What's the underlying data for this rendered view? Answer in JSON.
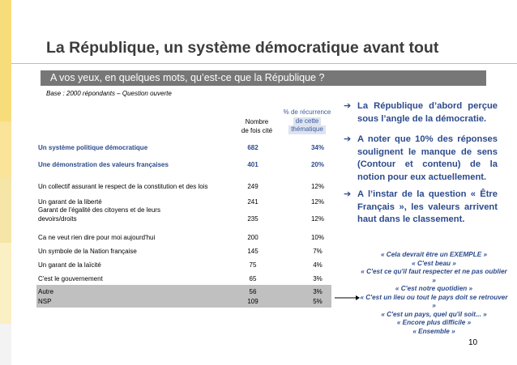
{
  "slide": {
    "title": "La République, un système démocratique avant tout",
    "question": "A vos yeux, en quelques mots, qu’est-ce que la République ?",
    "base": "Base : 2000 répondants – Question ouverte",
    "page_number": "10"
  },
  "table": {
    "col_count": [
      "Nombre",
      "de fois cité"
    ],
    "col_pct": [
      "% de récurrence",
      "de cette",
      "thématique"
    ],
    "rows": [
      {
        "label": "Un système politique démocratique",
        "count": "682",
        "pct": "34%"
      },
      {
        "label": "Une démonstration des valeurs françaises",
        "count": "401",
        "pct": "20%"
      },
      {
        "label": "Un collectif assurant le respect de la constitution et des lois",
        "count": "249",
        "pct": "12%"
      },
      {
        "label": "Un garant de la liberté",
        "count": "241",
        "pct": "12%"
      },
      {
        "label": "Garant de l'égalité des citoyens et de leurs devoirs/droits",
        "count": "235",
        "pct": "12%"
      },
      {
        "label": "Ca ne veut rien dire pour moi aujourd'hui",
        "count": "200",
        "pct": "10%"
      },
      {
        "label": "Un symbole de la Nation française",
        "count": "145",
        "pct": "7%"
      },
      {
        "label": "Un garant de la laïcité",
        "count": "75",
        "pct": "4%"
      },
      {
        "label": "C'est le gouvernement",
        "count": "65",
        "pct": "3%"
      },
      {
        "label": "Autre",
        "count": "56",
        "pct": "3%"
      },
      {
        "label": "NSP",
        "count": "109",
        "pct": "5%"
      }
    ]
  },
  "bullets": [
    "La République d’abord perçue sous l’angle de la démocratie.",
    "A noter que 10% des réponses soulignent le manque de sens (Contour et contenu) de la notion pour eux actuellement.",
    "A l’instar de la question « Être Français », les valeurs arrivent haut dans le classement."
  ],
  "quotes": [
    "« Cela devrait être un EXEMPLE »",
    "« C'est beau »",
    "« C'est ce qu'il faut respecter et ne pas oublier »",
    "« C'est notre quotidien »",
    "« C'est un lieu ou tout le pays doit se retrouver »",
    "« C'est un pays, quel qu'il soit... »",
    "« Encore plus difficile »",
    "« Ensemble »"
  ],
  "colors": {
    "accent_blue": "#2c4a8c",
    "title_gray": "#3c3c3c",
    "question_bar": "#777777",
    "highlight_rows": "#c0c0c0",
    "sidebar_yellow": "#f5d76e"
  }
}
